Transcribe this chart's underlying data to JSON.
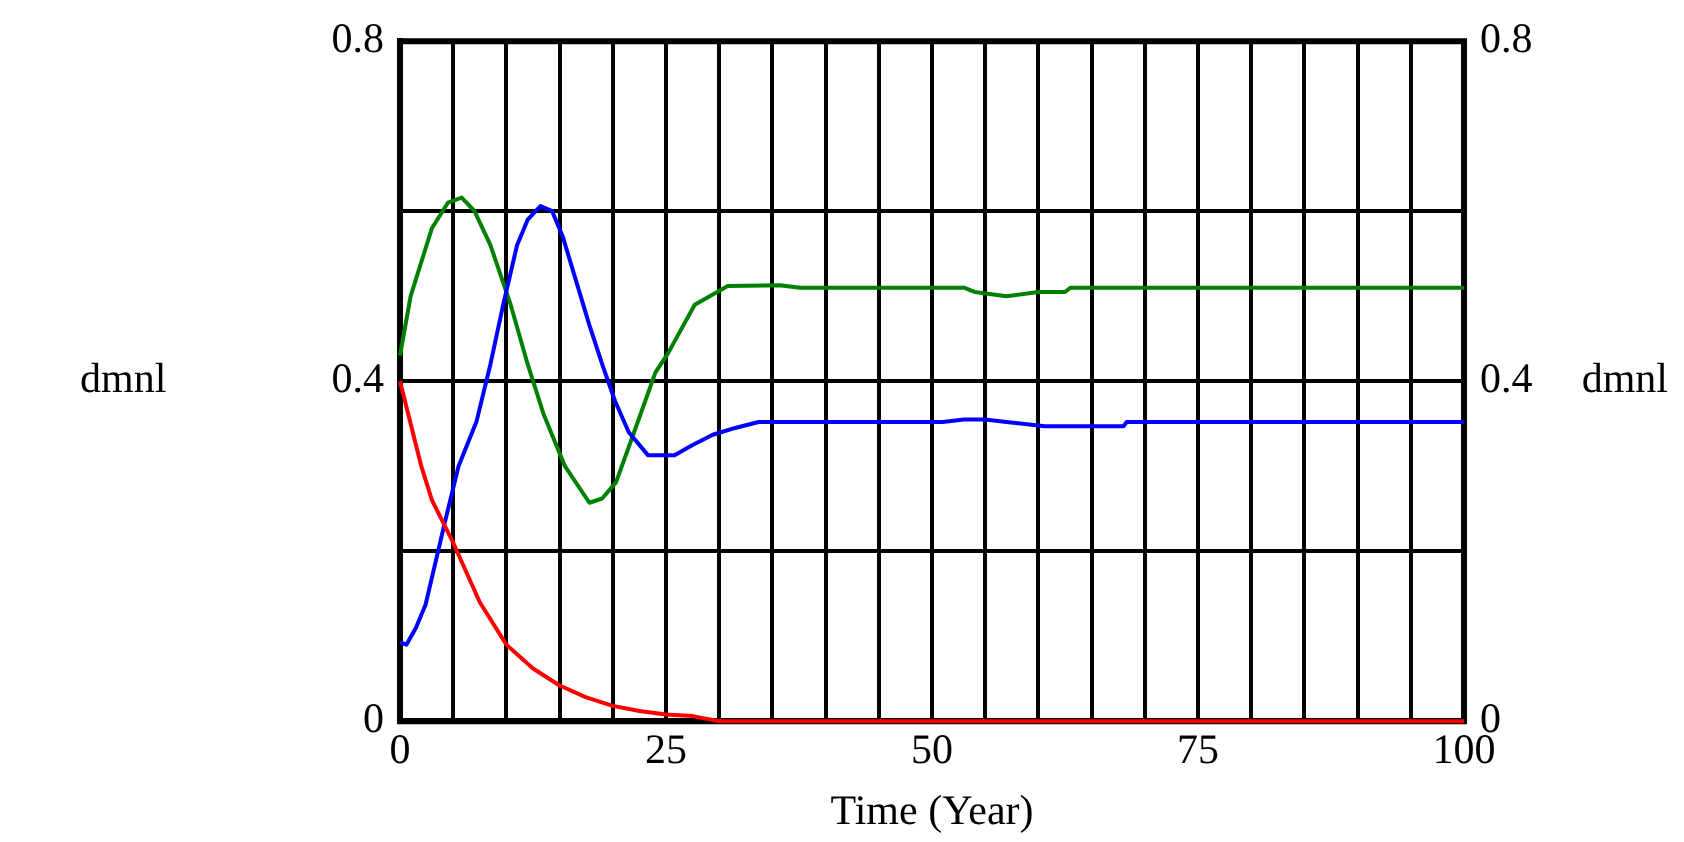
{
  "chart_data": {
    "type": "line",
    "xlabel": "Time (Year)",
    "ylabel": "dmnl",
    "y2label": "dmnl",
    "xlim": [
      0,
      100
    ],
    "xticks": [
      0,
      {
        "value": 5,
        "label": null
      },
      {
        "value": 10,
        "label": null
      },
      {
        "value": 15,
        "label": null
      },
      {
        "value": 20,
        "label": null
      },
      25,
      {
        "value": 30,
        "label": null
      },
      {
        "value": 35,
        "label": null
      },
      {
        "value": 40,
        "label": null
      },
      {
        "value": 45,
        "label": null
      },
      50,
      {
        "value": 55,
        "label": null
      },
      {
        "value": 60,
        "label": null
      },
      {
        "value": 65,
        "label": null
      },
      {
        "value": 70,
        "label": null
      },
      75,
      {
        "value": 80,
        "label": null
      },
      {
        "value": 85,
        "label": null
      },
      {
        "value": 90,
        "label": null
      },
      {
        "value": 95,
        "label": null
      },
      100
    ],
    "ylim": [
      0,
      0.8
    ],
    "yticks": [
      0,
      {
        "value": 0.2,
        "label": null
      },
      0.4,
      {
        "value": 0.6,
        "label": null
      },
      0.8
    ],
    "y2lim": [
      0,
      0.8
    ],
    "y2ticks": [
      0,
      0.4,
      0.8
    ],
    "grid": true,
    "legend": false,
    "marker": "none",
    "line_style": "solid",
    "series": [
      {
        "color": "#ff0000",
        "x": [
          0,
          1,
          2,
          3,
          5,
          7.5,
          10,
          12.5,
          15,
          17.5,
          20,
          22.5,
          25,
          27.5,
          30,
          100
        ],
        "values": [
          0.4,
          0.35,
          0.3,
          0.26,
          0.21,
          0.14,
          0.09,
          0.062,
          0.042,
          0.028,
          0.018,
          0.012,
          0.008,
          0.006,
          0,
          0
        ]
      },
      {
        "color": "#0000ff",
        "x": [
          0,
          0.6,
          1.5,
          2.4,
          4.2,
          5.5,
          7.2,
          8.5,
          9.7,
          11,
          12,
          13.2,
          14.3,
          15.3,
          16.5,
          17.8,
          19,
          20.2,
          21.5,
          23.3,
          25.8,
          27.5,
          29.4,
          31.5,
          33.7,
          51,
          53,
          55,
          57,
          60.6,
          68,
          68.3,
          100
        ],
        "values": [
          0.093,
          0.09,
          0.11,
          0.137,
          0.233,
          0.3,
          0.353,
          0.42,
          0.49,
          0.56,
          0.59,
          0.606,
          0.6,
          0.57,
          0.52,
          0.466,
          0.42,
          0.377,
          0.34,
          0.313,
          0.313,
          0.325,
          0.337,
          0.345,
          0.352,
          0.352,
          0.355,
          0.355,
          0.352,
          0.347,
          0.347,
          0.352,
          0.352
        ]
      },
      {
        "color": "#008000",
        "axis": "y2",
        "x": [
          0,
          1,
          2,
          3,
          4.5,
          5.8,
          7,
          8.5,
          10.4,
          12,
          13.5,
          15.5,
          17.8,
          19,
          20.3,
          22,
          24,
          25.2,
          27.7,
          30.8,
          35.7,
          37.6,
          53,
          54,
          57,
          60,
          62.5,
          63,
          100
        ],
        "values": [
          0.43,
          0.5,
          0.54,
          0.58,
          0.61,
          0.616,
          0.6,
          0.56,
          0.49,
          0.42,
          0.361,
          0.3,
          0.257,
          0.262,
          0.281,
          0.34,
          0.41,
          0.433,
          0.49,
          0.512,
          0.513,
          0.51,
          0.51,
          0.505,
          0.5,
          0.505,
          0.505,
          0.51,
          0.51
        ]
      }
    ]
  }
}
